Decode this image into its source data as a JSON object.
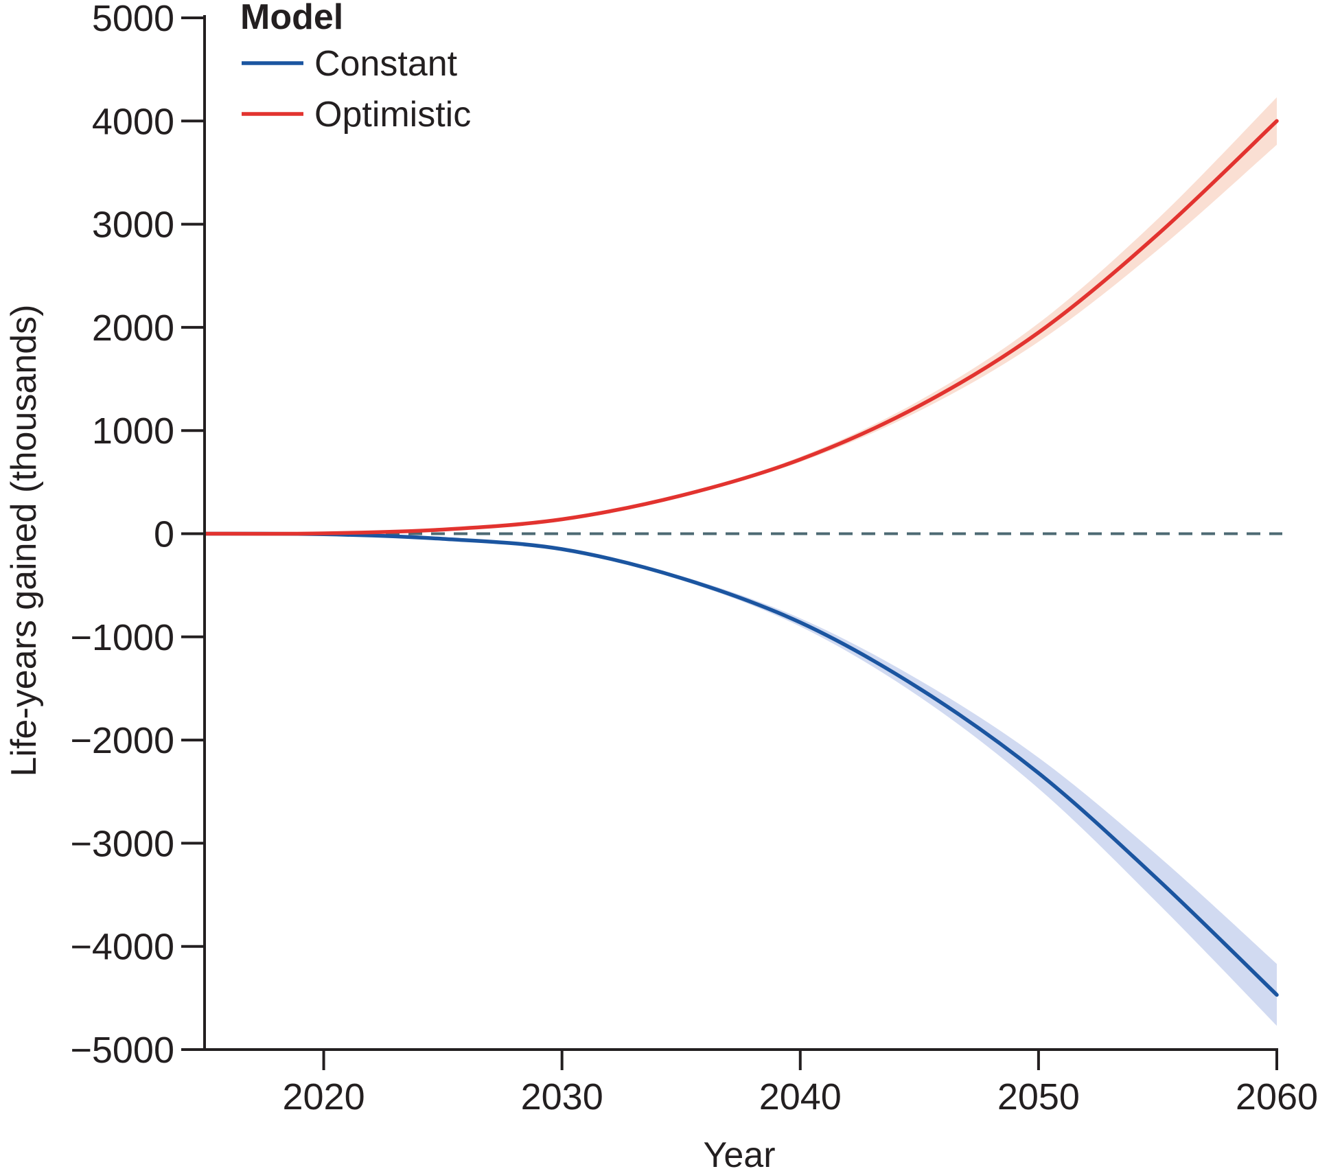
{
  "chart_data": {
    "type": "line",
    "xlabel": "Year",
    "ylabel": "Life-years gained (thousands)",
    "xlim": [
      2015,
      2060
    ],
    "ylim": [
      -5000,
      5000
    ],
    "x_ticks": [
      2020,
      2030,
      2040,
      2050,
      2060
    ],
    "y_ticks": [
      5000,
      4000,
      3000,
      2000,
      1000,
      0,
      -1000,
      -2000,
      -3000,
      -4000,
      -5000
    ],
    "x_tick_labels": [
      "2020",
      "2030",
      "2040",
      "2050",
      "2060"
    ],
    "y_tick_labels": [
      "5000",
      "4000",
      "3000",
      "2000",
      "1000",
      "0",
      "−1000",
      "−2000",
      "−3000",
      "−4000",
      "−5000"
    ],
    "reference_line": {
      "y": 0,
      "style": "dashed",
      "color": "#4d6a73"
    },
    "grid": false,
    "legend": {
      "title": "Model",
      "position": "top-left"
    },
    "x": [
      2015,
      2020,
      2025,
      2030,
      2035,
      2040,
      2045,
      2050,
      2055,
      2060
    ],
    "series": [
      {
        "name": "Constant",
        "color": "#1b55a0",
        "band_color": "#c9d4ee",
        "values": [
          0,
          -5,
          -50,
          -150,
          -430,
          -860,
          -1500,
          -2320,
          -3350,
          -4470
        ],
        "lower": [
          0,
          -5,
          -52,
          -158,
          -450,
          -900,
          -1580,
          -2470,
          -3580,
          -4770
        ],
        "upper": [
          0,
          -5,
          -48,
          -142,
          -410,
          -820,
          -1420,
          -2170,
          -3120,
          -4170
        ]
      },
      {
        "name": "Optimistic",
        "color": "#e2332f",
        "band_color": "#f9d9cb",
        "values": [
          0,
          3,
          40,
          140,
          370,
          720,
          1240,
          1950,
          2900,
          4000
        ],
        "lower": [
          0,
          3,
          38,
          133,
          355,
          695,
          1190,
          1860,
          2750,
          3770
        ],
        "upper": [
          0,
          3,
          42,
          147,
          385,
          745,
          1290,
          2040,
          3050,
          4230
        ]
      }
    ]
  }
}
